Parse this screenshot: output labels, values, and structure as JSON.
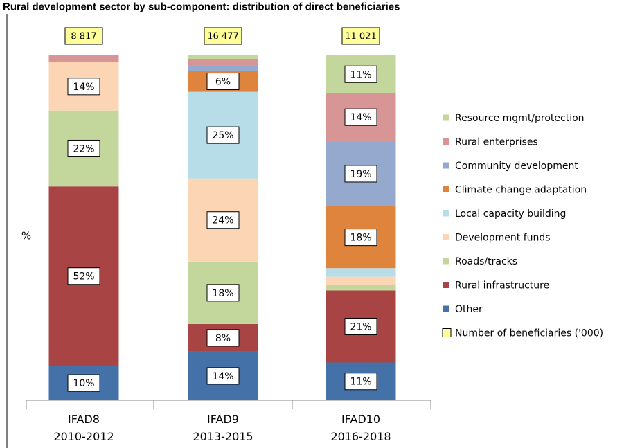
{
  "chart_data": {
    "type": "bar",
    "stacked": true,
    "title": "Rural development sector by sub-component: distribution of direct beneficiaries",
    "ylabel": "%",
    "ylim": [
      0,
      100
    ],
    "grid": false,
    "legend_position": "right",
    "categories": [
      {
        "name": "IFAD8",
        "period": "2010-2012"
      },
      {
        "name": "IFAD9",
        "period": "2013-2015"
      },
      {
        "name": "IFAD10",
        "period": "2016-2018"
      }
    ],
    "totals": {
      "name": "Number of beneficiaries ('000)",
      "values": [
        "8 817",
        "16 477",
        "11 021"
      ],
      "color": "#ffff99"
    },
    "series": [
      {
        "name": "Other",
        "color": "#4472a8",
        "values": [
          10,
          14,
          11
        ],
        "labels": [
          "10%",
          "14%",
          "11%"
        ]
      },
      {
        "name": "Rural infrastructure",
        "color": "#a84444",
        "values": [
          52,
          8,
          21
        ],
        "labels": [
          "52%",
          "8%",
          "21%"
        ]
      },
      {
        "name": "Roads/tracks",
        "color": "#c3d69b",
        "values": [
          22,
          18,
          1.5
        ],
        "labels": [
          "22%",
          "18%",
          ""
        ]
      },
      {
        "name": "Development funds",
        "color": "#fcd5b5",
        "values": [
          14,
          24,
          2.5
        ],
        "labels": [
          "14%",
          "24%",
          ""
        ]
      },
      {
        "name": "Local capacity building",
        "color": "#b7dde8",
        "values": [
          0,
          25,
          2.5
        ],
        "labels": [
          "",
          "25%",
          ""
        ]
      },
      {
        "name": "Climate change adaptation",
        "color": "#de843c",
        "values": [
          0,
          6,
          18
        ],
        "labels": [
          "",
          "6%",
          "18%"
        ]
      },
      {
        "name": "Community development",
        "color": "#95a9cf",
        "values": [
          0,
          1.5,
          19
        ],
        "labels": [
          "",
          "",
          "19%"
        ]
      },
      {
        "name": "Rural enterprises",
        "color": "#d79595",
        "values": [
          2,
          2,
          14
        ],
        "labels": [
          "",
          "",
          "14%"
        ]
      },
      {
        "name": "Resource mgmt/protection",
        "color": "#c3d69b",
        "values": [
          0,
          1,
          11
        ],
        "labels": [
          "",
          "",
          "11%"
        ]
      }
    ]
  }
}
